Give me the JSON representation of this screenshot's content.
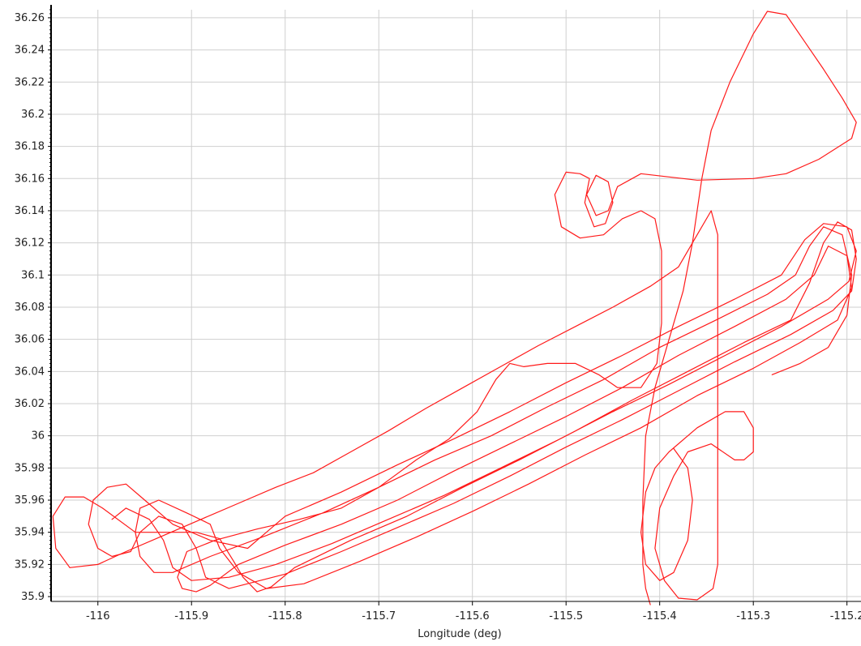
{
  "chart_data": {
    "type": "line",
    "title": "",
    "xlabel": "Longitude (deg)",
    "ylabel": "",
    "xlim": [
      -116.05,
      -115.185
    ],
    "ylim": [
      35.897,
      36.265
    ],
    "grid": true,
    "legend": "none",
    "x_ticks": [
      {
        "value": -116.0,
        "label": "-116"
      },
      {
        "value": -115.9,
        "label": "-115.9"
      },
      {
        "value": -115.8,
        "label": "-115.8"
      },
      {
        "value": -115.7,
        "label": "-115.7"
      },
      {
        "value": -115.6,
        "label": "-115.6"
      },
      {
        "value": -115.5,
        "label": "-115.5"
      },
      {
        "value": -115.4,
        "label": "-115.4"
      },
      {
        "value": -115.3,
        "label": "-115.3"
      },
      {
        "value": -115.2,
        "label": "-115.2"
      }
    ],
    "y_ticks": [
      {
        "value": 35.9,
        "label": "35.9"
      },
      {
        "value": 35.92,
        "label": "35.92"
      },
      {
        "value": 35.94,
        "label": "35.94"
      },
      {
        "value": 35.96,
        "label": "35.96"
      },
      {
        "value": 35.98,
        "label": "35.98"
      },
      {
        "value": 36.0,
        "label": "36"
      },
      {
        "value": 36.02,
        "label": "36.02"
      },
      {
        "value": 36.04,
        "label": "36.04"
      },
      {
        "value": 36.06,
        "label": "36.06"
      },
      {
        "value": 36.08,
        "label": "36.08"
      },
      {
        "value": 36.1,
        "label": "36.1"
      },
      {
        "value": 36.12,
        "label": "36.12"
      },
      {
        "value": 36.14,
        "label": "36.14"
      },
      {
        "value": 36.16,
        "label": "36.16"
      },
      {
        "value": 36.18,
        "label": "36.18"
      },
      {
        "value": 36.2,
        "label": "36.2"
      },
      {
        "value": 36.22,
        "label": "36.22"
      },
      {
        "value": 36.24,
        "label": "36.24"
      },
      {
        "value": 36.26,
        "label": "36.26"
      }
    ],
    "series": [
      {
        "color": "#ff1a1a",
        "points": [
          [
            -115.41,
            35.895
          ],
          [
            -115.415,
            35.905
          ],
          [
            -115.418,
            35.92
          ],
          [
            -115.418,
            35.96
          ],
          [
            -115.415,
            36.0
          ],
          [
            -115.405,
            36.03
          ],
          [
            -115.39,
            36.06
          ],
          [
            -115.375,
            36.09
          ],
          [
            -115.365,
            36.12
          ],
          [
            -115.355,
            36.16
          ],
          [
            -115.345,
            36.19
          ],
          [
            -115.325,
            36.22
          ],
          [
            -115.3,
            36.25
          ],
          [
            -115.285,
            36.264
          ],
          [
            -115.265,
            36.262
          ],
          [
            -115.245,
            36.245
          ],
          [
            -115.225,
            36.228
          ],
          [
            -115.205,
            36.21
          ],
          [
            -115.19,
            36.195
          ],
          [
            -115.195,
            36.185
          ],
          [
            -115.23,
            36.172
          ],
          [
            -115.265,
            36.163
          ],
          [
            -115.3,
            36.16
          ],
          [
            -115.36,
            36.159
          ],
          [
            -115.42,
            36.163
          ],
          [
            -115.445,
            36.155
          ],
          [
            -115.455,
            36.14
          ],
          [
            -115.468,
            36.137
          ],
          [
            -115.478,
            36.15
          ],
          [
            -115.468,
            36.162
          ],
          [
            -115.455,
            36.158
          ],
          [
            -115.45,
            36.145
          ],
          [
            -115.458,
            36.132
          ],
          [
            -115.47,
            36.13
          ],
          [
            -115.48,
            36.145
          ],
          [
            -115.475,
            36.16
          ],
          [
            -115.485,
            36.163
          ],
          [
            -115.5,
            36.164
          ],
          [
            -115.512,
            36.15
          ],
          [
            -115.505,
            36.13
          ],
          [
            -115.485,
            36.123
          ],
          [
            -115.46,
            36.125
          ],
          [
            -115.44,
            36.135
          ],
          [
            -115.42,
            36.14
          ],
          [
            -115.405,
            36.135
          ],
          [
            -115.398,
            36.115
          ],
          [
            -115.398,
            36.07
          ],
          [
            -115.403,
            36.045
          ],
          [
            -115.42,
            36.03
          ],
          [
            -115.445,
            36.03
          ],
          [
            -115.465,
            36.038
          ],
          [
            -115.49,
            36.045
          ],
          [
            -115.52,
            36.045
          ],
          [
            -115.545,
            36.043
          ],
          [
            -115.56,
            36.045
          ],
          [
            -115.575,
            36.035
          ],
          [
            -115.595,
            36.015
          ],
          [
            -115.625,
            35.998
          ],
          [
            -115.66,
            35.985
          ],
          [
            -115.7,
            35.968
          ],
          [
            -115.74,
            35.955
          ],
          [
            -115.785,
            35.948
          ],
          [
            -115.83,
            35.942
          ],
          [
            -115.875,
            35.935
          ],
          [
            -115.905,
            35.928
          ],
          [
            -115.915,
            35.912
          ],
          [
            -115.91,
            35.905
          ],
          [
            -115.895,
            35.903
          ],
          [
            -115.88,
            35.907
          ],
          [
            -115.85,
            35.92
          ],
          [
            -115.8,
            35.932
          ],
          [
            -115.74,
            35.945
          ],
          [
            -115.68,
            35.96
          ],
          [
            -115.62,
            35.978
          ],
          [
            -115.56,
            35.995
          ],
          [
            -115.5,
            36.012
          ],
          [
            -115.44,
            36.03
          ],
          [
            -115.38,
            36.05
          ],
          [
            -115.32,
            36.068
          ],
          [
            -115.265,
            36.085
          ],
          [
            -115.235,
            36.1
          ],
          [
            -115.22,
            36.118
          ],
          [
            -115.2,
            36.112
          ],
          [
            -115.195,
            36.092
          ],
          [
            -115.21,
            36.072
          ],
          [
            -115.25,
            36.058
          ],
          [
            -115.3,
            36.042
          ],
          [
            -115.36,
            36.025
          ],
          [
            -115.42,
            36.005
          ],
          [
            -115.48,
            35.988
          ],
          [
            -115.54,
            35.97
          ],
          [
            -115.6,
            35.953
          ],
          [
            -115.66,
            35.937
          ],
          [
            -115.72,
            35.922
          ],
          [
            -115.78,
            35.908
          ],
          [
            -115.82,
            35.905
          ],
          [
            -115.85,
            35.915
          ],
          [
            -115.87,
            35.93
          ],
          [
            -115.88,
            35.945
          ],
          [
            -115.905,
            35.952
          ],
          [
            -115.935,
            35.96
          ],
          [
            -115.955,
            35.955
          ],
          [
            -115.96,
            35.94
          ],
          [
            -115.955,
            35.925
          ],
          [
            -115.94,
            35.915
          ],
          [
            -115.92,
            35.915
          ],
          [
            -115.88,
            35.925
          ],
          [
            -115.82,
            35.938
          ],
          [
            -115.76,
            35.952
          ],
          [
            -115.7,
            35.968
          ],
          [
            -115.64,
            35.985
          ],
          [
            -115.58,
            36.0
          ],
          [
            -115.52,
            36.018
          ],
          [
            -115.46,
            36.035
          ],
          [
            -115.4,
            36.055
          ],
          [
            -115.34,
            36.072
          ],
          [
            -115.285,
            36.088
          ],
          [
            -115.255,
            36.1
          ],
          [
            -115.24,
            36.118
          ],
          [
            -115.225,
            36.13
          ],
          [
            -115.205,
            36.125
          ],
          [
            -115.195,
            36.1
          ],
          [
            -115.2,
            36.075
          ],
          [
            -115.22,
            36.055
          ],
          [
            -115.25,
            36.045
          ],
          [
            -115.28,
            36.038
          ]
        ]
      },
      {
        "color": "#ff1a1a",
        "points": [
          [
            -116.03,
            35.918
          ],
          [
            -116.045,
            35.93
          ],
          [
            -116.048,
            35.95
          ],
          [
            -116.035,
            35.962
          ],
          [
            -116.015,
            35.962
          ],
          [
            -115.995,
            35.955
          ],
          [
            -115.96,
            35.94
          ],
          [
            -115.925,
            35.94
          ],
          [
            -115.895,
            35.94
          ],
          [
            -115.87,
            35.936
          ],
          [
            -115.855,
            35.922
          ],
          [
            -115.845,
            35.912
          ],
          [
            -115.83,
            35.903
          ],
          [
            -115.815,
            35.906
          ],
          [
            -115.79,
            35.918
          ],
          [
            -115.73,
            35.935
          ],
          [
            -115.67,
            35.95
          ],
          [
            -115.61,
            35.968
          ],
          [
            -115.55,
            35.985
          ],
          [
            -115.49,
            36.003
          ],
          [
            -115.43,
            36.022
          ],
          [
            -115.37,
            36.04
          ],
          [
            -115.31,
            36.058
          ],
          [
            -115.26,
            36.072
          ],
          [
            -115.24,
            36.095
          ],
          [
            -115.225,
            36.12
          ],
          [
            -115.21,
            36.133
          ],
          [
            -115.195,
            36.128
          ],
          [
            -115.19,
            36.11
          ],
          [
            -115.195,
            36.09
          ],
          [
            -115.215,
            36.078
          ],
          [
            -115.26,
            36.063
          ],
          [
            -115.32,
            36.046
          ],
          [
            -115.38,
            36.028
          ],
          [
            -115.44,
            36.01
          ],
          [
            -115.5,
            35.993
          ],
          [
            -115.56,
            35.975
          ],
          [
            -115.62,
            35.958
          ],
          [
            -115.68,
            35.943
          ],
          [
            -115.74,
            35.928
          ],
          [
            -115.8,
            35.914
          ],
          [
            -115.86,
            35.905
          ],
          [
            -115.885,
            35.912
          ],
          [
            -115.895,
            35.93
          ],
          [
            -115.91,
            35.945
          ],
          [
            -115.935,
            35.95
          ],
          [
            -115.955,
            35.94
          ],
          [
            -115.965,
            35.928
          ],
          [
            -115.985,
            35.925
          ],
          [
            -116.0,
            35.93
          ],
          [
            -116.01,
            35.945
          ],
          [
            -116.005,
            35.96
          ],
          [
            -115.99,
            35.968
          ],
          [
            -115.97,
            35.97
          ],
          [
            -115.95,
            35.96
          ],
          [
            -115.92,
            35.945
          ],
          [
            -115.88,
            35.935
          ],
          [
            -115.84,
            35.93
          ],
          [
            -115.82,
            35.94
          ],
          [
            -115.8,
            35.95
          ],
          [
            -115.74,
            35.965
          ],
          [
            -115.68,
            35.982
          ],
          [
            -115.62,
            35.998
          ],
          [
            -115.56,
            36.015
          ],
          [
            -115.5,
            36.033
          ],
          [
            -115.44,
            36.05
          ],
          [
            -115.38,
            36.068
          ],
          [
            -115.32,
            36.085
          ],
          [
            -115.27,
            36.1
          ],
          [
            -115.245,
            36.122
          ],
          [
            -115.225,
            36.132
          ],
          [
            -115.2,
            36.13
          ],
          [
            -115.19,
            36.115
          ],
          [
            -115.198,
            36.096
          ],
          [
            -115.22,
            36.085
          ],
          [
            -115.27,
            36.068
          ],
          [
            -115.33,
            36.05
          ],
          [
            -115.39,
            36.032
          ],
          [
            -115.45,
            36.015
          ],
          [
            -115.51,
            35.997
          ],
          [
            -115.57,
            35.98
          ],
          [
            -115.63,
            35.963
          ],
          [
            -115.69,
            35.948
          ],
          [
            -115.75,
            35.933
          ],
          [
            -115.81,
            35.92
          ],
          [
            -115.86,
            35.912
          ],
          [
            -115.9,
            35.91
          ],
          [
            -115.92,
            35.918
          ],
          [
            -115.93,
            35.935
          ],
          [
            -115.945,
            35.948
          ],
          [
            -115.97,
            35.955
          ],
          [
            -115.985,
            35.948
          ]
        ]
      },
      {
        "color": "#ff1a1a",
        "points": [
          [
            -116.03,
            35.918
          ],
          [
            -116.0,
            35.92
          ],
          [
            -115.97,
            35.928
          ],
          [
            -115.93,
            35.938
          ],
          [
            -115.89,
            35.948
          ],
          [
            -115.85,
            35.958
          ],
          [
            -115.81,
            35.968
          ],
          [
            -115.77,
            35.977
          ],
          [
            -115.73,
            35.99
          ],
          [
            -115.69,
            36.003
          ],
          [
            -115.65,
            36.017
          ],
          [
            -115.61,
            36.03
          ],
          [
            -115.57,
            36.043
          ],
          [
            -115.53,
            36.056
          ],
          [
            -115.49,
            36.068
          ],
          [
            -115.45,
            36.08
          ],
          [
            -115.41,
            36.093
          ],
          [
            -115.38,
            36.105
          ],
          [
            -115.36,
            36.125
          ],
          [
            -115.345,
            36.14
          ],
          [
            -115.338,
            36.125
          ],
          [
            -115.338,
            36.05
          ],
          [
            -115.338,
            35.99
          ],
          [
            -115.338,
            35.92
          ],
          [
            -115.343,
            35.905
          ],
          [
            -115.36,
            35.898
          ],
          [
            -115.38,
            35.899
          ],
          [
            -115.395,
            35.91
          ],
          [
            -115.405,
            35.93
          ],
          [
            -115.4,
            35.955
          ],
          [
            -115.385,
            35.975
          ],
          [
            -115.37,
            35.99
          ],
          [
            -115.345,
            35.995
          ],
          [
            -115.32,
            35.985
          ],
          [
            -115.31,
            35.985
          ],
          [
            -115.3,
            35.99
          ],
          [
            -115.3,
            36.005
          ],
          [
            -115.31,
            36.015
          ],
          [
            -115.33,
            36.015
          ],
          [
            -115.36,
            36.005
          ],
          [
            -115.39,
            35.99
          ],
          [
            -115.405,
            35.98
          ],
          [
            -115.415,
            35.965
          ],
          [
            -115.42,
            35.94
          ],
          [
            -115.415,
            35.92
          ],
          [
            -115.4,
            35.91
          ],
          [
            -115.385,
            35.915
          ],
          [
            -115.37,
            35.935
          ],
          [
            -115.365,
            35.96
          ],
          [
            -115.37,
            35.98
          ],
          [
            -115.385,
            35.992
          ]
        ]
      }
    ]
  }
}
